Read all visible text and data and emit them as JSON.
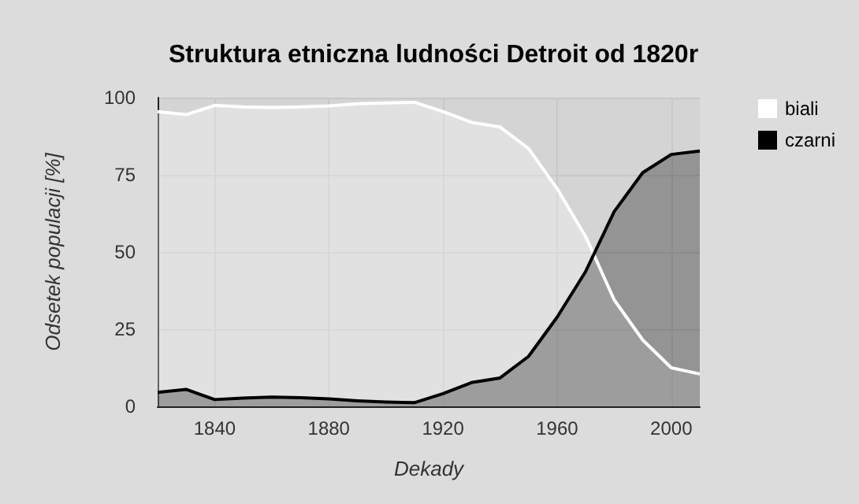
{
  "chart_data": {
    "type": "area",
    "title": "Struktura etniczna ludności Detroit od 1820r",
    "xlabel": "Dekady",
    "ylabel": "Odsetek populacji [%]",
    "x": [
      1820,
      1830,
      1840,
      1850,
      1860,
      1870,
      1880,
      1890,
      1900,
      1910,
      1920,
      1930,
      1940,
      1950,
      1960,
      1970,
      1980,
      1990,
      2000,
      2010
    ],
    "series": [
      {
        "name": "biali",
        "color": "#ffffff",
        "values": [
          95.5,
          94.5,
          97.5,
          97,
          96.8,
          97,
          97.3,
          98,
          98.3,
          98.5,
          95.5,
          92,
          90.5,
          83.5,
          70.5,
          55,
          34.5,
          21.5,
          12.5,
          10.5
        ]
      },
      {
        "name": "czarni",
        "color": "#000000",
        "values": [
          4.5,
          5.5,
          2.2,
          2.7,
          3,
          2.8,
          2.4,
          1.8,
          1.4,
          1.2,
          4.1,
          7.7,
          9.2,
          16.2,
          28.9,
          43.7,
          63.1,
          75.7,
          81.6,
          82.7
        ]
      }
    ],
    "xlim": [
      1820,
      2010
    ],
    "xticks": [
      1840,
      1880,
      1920,
      1960,
      2000
    ],
    "ylim": [
      0,
      100
    ],
    "yticks": [
      0,
      25,
      50,
      75,
      100
    ],
    "grid": true,
    "legend": "top right",
    "marker": "none",
    "line_style": "solid"
  }
}
